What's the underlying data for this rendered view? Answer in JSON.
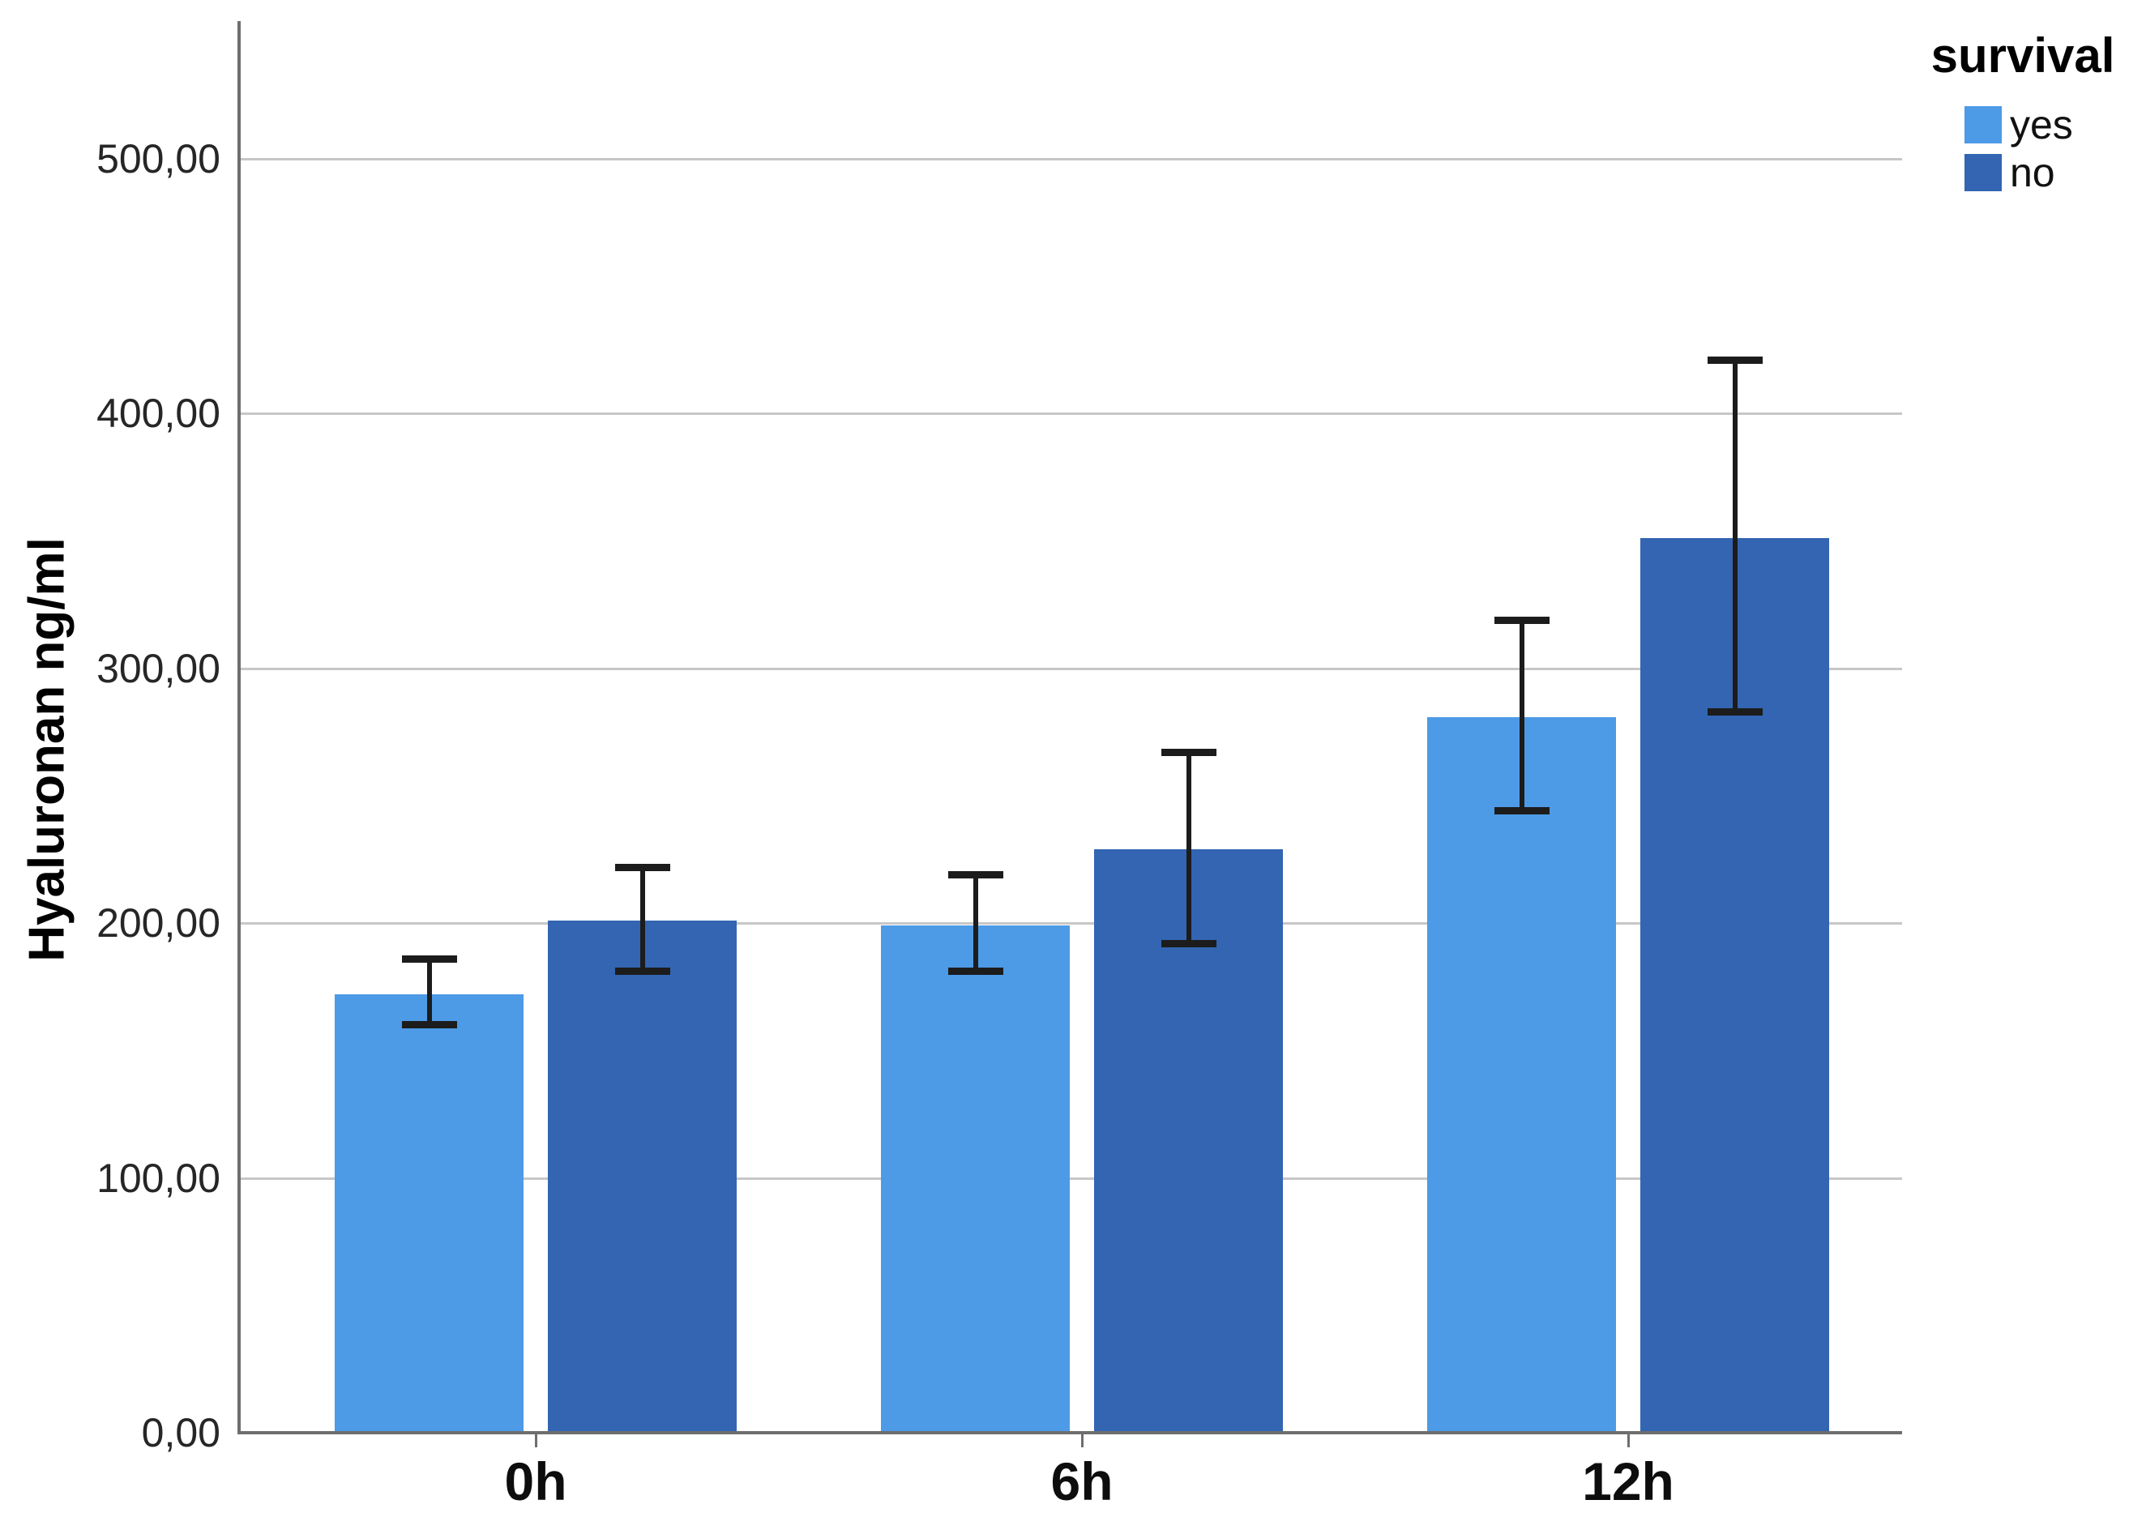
{
  "chart_data": {
    "type": "bar",
    "title": "",
    "xlabel": "",
    "ylabel": "Hyaluronan ng/ml",
    "categories": [
      "0h",
      "6h",
      "12h"
    ],
    "series": [
      {
        "name": "yes",
        "color": "#4d9ae6",
        "values": [
          172,
          199,
          281
        ],
        "error_low": [
          160,
          181,
          244
        ],
        "error_high": [
          186,
          219,
          319
        ]
      },
      {
        "name": "no",
        "color": "#3365b2",
        "values": [
          201,
          229,
          351
        ],
        "error_low": [
          181,
          192,
          283
        ],
        "error_high": [
          222,
          267,
          421
        ]
      }
    ],
    "ylim": [
      0,
      554
    ],
    "yticks": [
      {
        "value": 0,
        "label": "0,00"
      },
      {
        "value": 100,
        "label": "100,00"
      },
      {
        "value": 200,
        "label": "200,00"
      },
      {
        "value": 300,
        "label": "300,00"
      },
      {
        "value": 400,
        "label": "400,00"
      },
      {
        "value": 500,
        "label": "500,00"
      }
    ],
    "grid": true,
    "legend": {
      "title": "survival",
      "position": "top-right",
      "entries": [
        "yes",
        "no"
      ]
    },
    "colors": {
      "gridline": "#c7c7c7",
      "axis": "#6e6e6e",
      "error_bar": "#1c1c1c",
      "text": "#000000"
    }
  }
}
